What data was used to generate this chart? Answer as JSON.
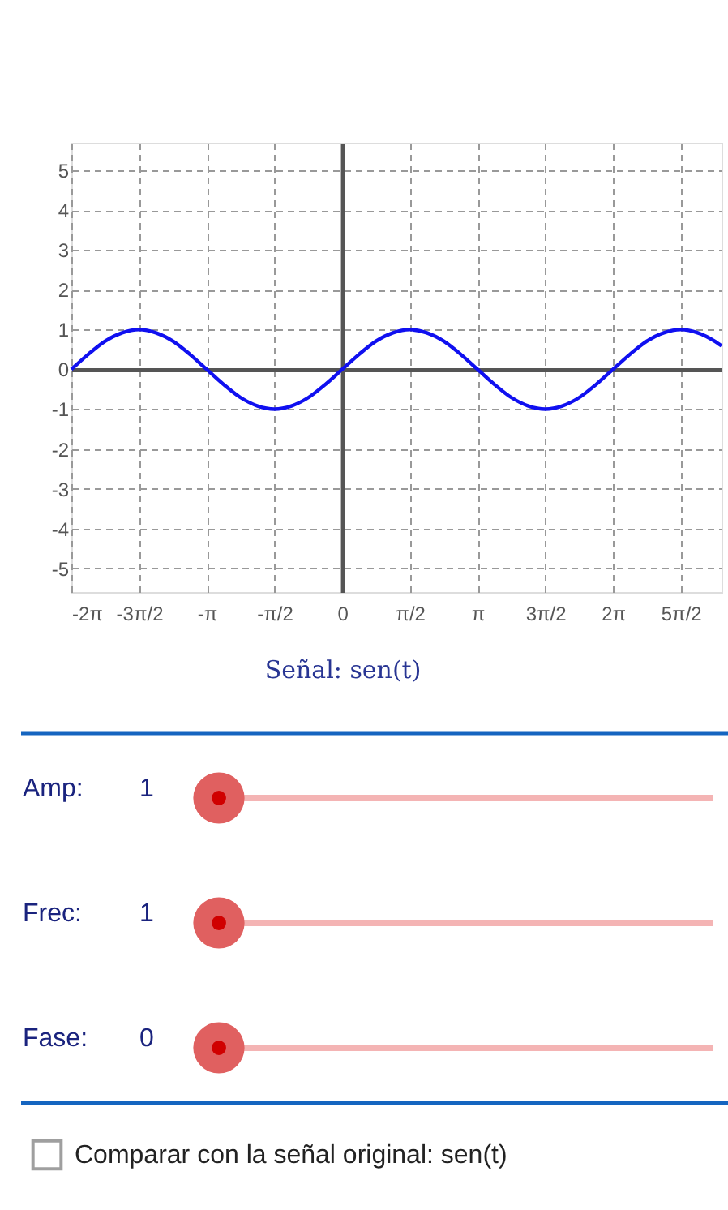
{
  "chart_data": {
    "type": "line",
    "title": "Señal: sen(t)",
    "x": [
      -6.283,
      -5.89,
      -5.498,
      -5.105,
      -4.712,
      -4.32,
      -3.927,
      -3.534,
      -3.142,
      -2.749,
      -2.356,
      -1.963,
      -1.571,
      -1.178,
      -0.785,
      -0.393,
      0,
      0.393,
      0.785,
      1.178,
      1.571,
      1.963,
      2.356,
      2.749,
      3.142,
      3.534,
      3.927,
      4.32,
      4.712,
      5.105,
      5.498,
      5.89,
      6.283,
      6.676,
      7.069,
      7.461,
      7.854,
      8.247,
      8.639,
      8.8
    ],
    "series": [
      {
        "color": "#1010f0",
        "values": [
          0,
          0.38,
          0.71,
          0.92,
          1,
          0.92,
          0.71,
          0.38,
          0,
          -0.38,
          -0.71,
          -0.92,
          -1,
          -0.92,
          -0.71,
          -0.38,
          0,
          0.38,
          0.71,
          0.92,
          1,
          0.92,
          0.71,
          0.38,
          0,
          -0.38,
          -0.71,
          -0.92,
          -1,
          -0.92,
          -0.71,
          -0.38,
          0,
          0.38,
          0.71,
          0.92,
          1,
          0.92,
          0.71,
          0.59
        ]
      }
    ],
    "xlim": [
      -6.283,
      8.8
    ],
    "ylim": [
      -5.6,
      5.7
    ],
    "xticks": [
      {
        "value": -6.283,
        "label": "-2π"
      },
      {
        "value": -4.712,
        "label": "-3π/2"
      },
      {
        "value": -3.142,
        "label": "-π"
      },
      {
        "value": -1.571,
        "label": "-π/2"
      },
      0,
      {
        "value": 1.571,
        "label": "π/2"
      },
      {
        "value": 3.142,
        "label": "π"
      },
      {
        "value": 4.712,
        "label": "3π/2"
      },
      {
        "value": 6.283,
        "label": "2π"
      },
      {
        "value": 7.854,
        "label": "5π/2"
      }
    ],
    "yticks": [
      -5,
      -4,
      -3,
      -2,
      -1,
      0,
      1,
      2,
      3,
      4,
      5
    ],
    "grid": true,
    "line_style": "solid",
    "marker": "none",
    "annotations": [
      "Amp:",
      "1",
      "Frec:",
      "1",
      "Fase:",
      "0",
      "Comparar con la señal original: sen(t)"
    ]
  }
}
